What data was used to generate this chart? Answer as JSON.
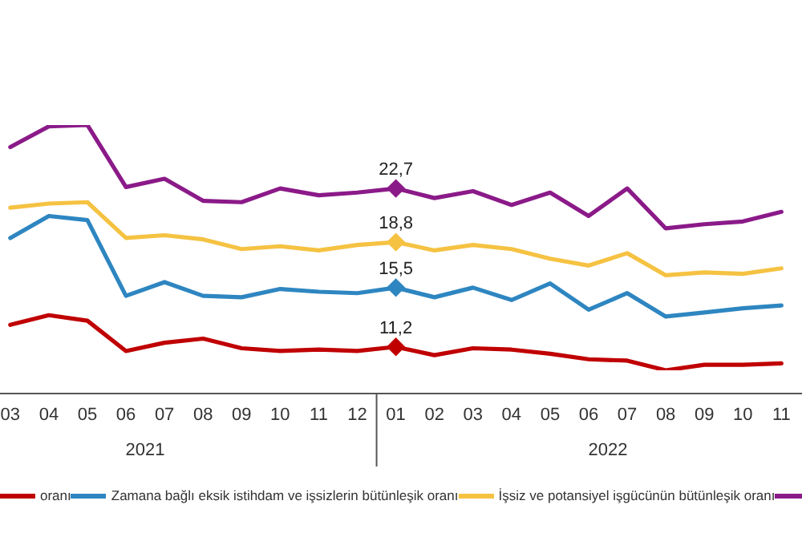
{
  "chart_data": {
    "type": "line",
    "x": [
      "2021-03",
      "2021-04",
      "2021-05",
      "2021-06",
      "2021-07",
      "2021-08",
      "2021-09",
      "2021-10",
      "2021-11",
      "2021-12",
      "2022-01",
      "2022-02",
      "2022-03",
      "2022-04",
      "2022-05",
      "2022-06",
      "2022-07",
      "2022-08",
      "2022-09",
      "2022-10",
      "2022-11"
    ],
    "xticks": [
      {
        "value": "2021-03",
        "label": "03"
      },
      {
        "value": "2021-04",
        "label": "04"
      },
      {
        "value": "2021-05",
        "label": "05"
      },
      {
        "value": "2021-06",
        "label": "06"
      },
      {
        "value": "2021-07",
        "label": "07"
      },
      {
        "value": "2021-08",
        "label": "08"
      },
      {
        "value": "2021-09",
        "label": "09"
      },
      {
        "value": "2021-10",
        "label": "10"
      },
      {
        "value": "2021-11",
        "label": "11"
      },
      {
        "value": "2021-12",
        "label": "12"
      },
      {
        "value": "2022-01",
        "label": "01"
      },
      {
        "value": "2022-02",
        "label": "02"
      },
      {
        "value": "2022-03",
        "label": "03"
      },
      {
        "value": "2022-04",
        "label": "04"
      },
      {
        "value": "2022-05",
        "label": "05"
      },
      {
        "value": "2022-06",
        "label": "06"
      },
      {
        "value": "2022-07",
        "label": "07"
      },
      {
        "value": "2022-08",
        "label": "08"
      },
      {
        "value": "2022-09",
        "label": "09"
      },
      {
        "value": "2022-10",
        "label": "10"
      },
      {
        "value": "2022-11",
        "label": "11"
      }
    ],
    "xlim": [
      "2021-02-23",
      "2022-11-17"
    ],
    "tick_labels": "x",
    "legend": "bottom",
    "line_style": "solid",
    "annotations": [
      "2021",
      "2022"
    ],
    "series": [
      {
        "name": "oranı",
        "color": "#c00000",
        "values": [
          12.8,
          13.5,
          13.1,
          10.9,
          11.5,
          11.8,
          11.1,
          10.9,
          11.0,
          10.9,
          11.2,
          10.6,
          11.1,
          11.0,
          10.7,
          10.3,
          10.2,
          9.5,
          9.9,
          9.9,
          10.0
        ],
        "value_labels": [
          null,
          null,
          null,
          null,
          null,
          null,
          null,
          null,
          null,
          null,
          "11,2",
          null,
          null,
          null,
          null,
          null,
          null,
          null,
          null,
          null,
          null
        ]
      },
      {
        "name": "Zamana bağlı eksik istihdam ve işsizlerin bütünleşik oranı",
        "color": "#2e86c1",
        "values": [
          19.1,
          20.7,
          20.4,
          14.9,
          15.9,
          14.9,
          14.8,
          15.4,
          15.2,
          15.1,
          15.5,
          14.8,
          15.5,
          14.6,
          15.8,
          13.9,
          15.1,
          13.4,
          13.7,
          14.0,
          14.2
        ],
        "value_labels": [
          null,
          null,
          null,
          null,
          null,
          null,
          null,
          null,
          null,
          null,
          "15,5",
          null,
          null,
          null,
          null,
          null,
          null,
          null,
          null,
          null,
          null
        ]
      },
      {
        "name": "İşsiz ve potansiyel işgücünün bütünleşik oranı",
        "color": "#f5c242",
        "values": [
          21.3,
          21.6,
          21.7,
          19.1,
          19.3,
          19.0,
          18.3,
          18.5,
          18.2,
          18.6,
          18.8,
          18.2,
          18.6,
          18.3,
          17.6,
          17.1,
          18.0,
          16.4,
          16.6,
          16.5,
          16.9
        ],
        "value_labels": [
          null,
          null,
          null,
          null,
          null,
          null,
          null,
          null,
          null,
          null,
          "18,8",
          null,
          null,
          null,
          null,
          null,
          null,
          null,
          null,
          null,
          null
        ]
      },
      {
        "color": "#8b1a89",
        "values": [
          25.7,
          27.2,
          27.3,
          22.8,
          23.4,
          21.8,
          21.7,
          22.7,
          22.2,
          22.4,
          22.7,
          22.0,
          22.5,
          21.5,
          22.4,
          20.7,
          22.7,
          19.8,
          20.1,
          20.3,
          21.0
        ],
        "value_labels": [
          null,
          null,
          null,
          null,
          null,
          null,
          null,
          null,
          null,
          null,
          "22,7",
          null,
          null,
          null,
          null,
          null,
          null,
          null,
          null,
          null,
          null
        ]
      }
    ]
  }
}
